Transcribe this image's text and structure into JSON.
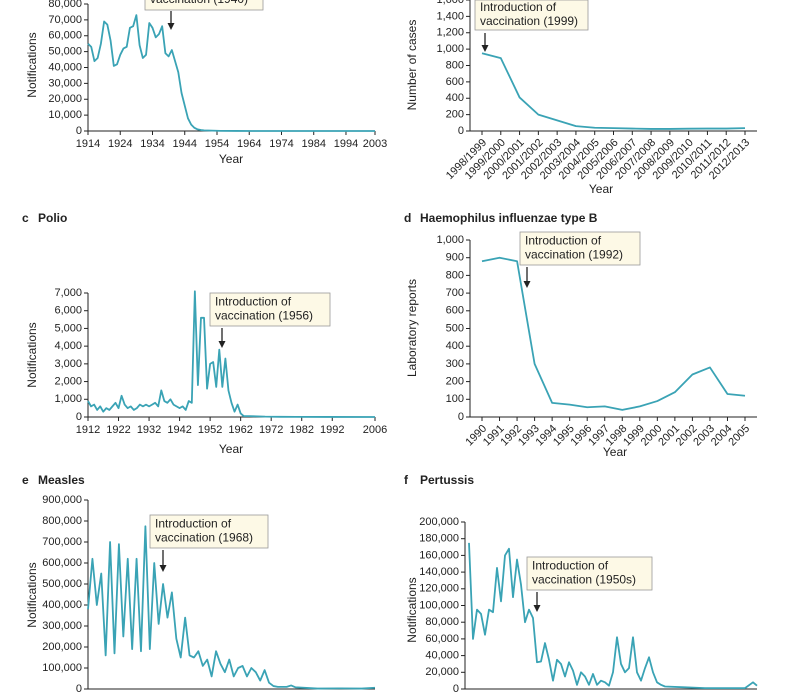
{
  "chart_data": [
    {
      "type": "line",
      "color": "#3aa3b5",
      "y_label": "Notifications",
      "x_label": "Year",
      "annotation": [
        "vaccination (1940)"
      ],
      "x": [
        1914,
        1915,
        1916,
        1917,
        1918,
        1919,
        1920,
        1921,
        1922,
        1923,
        1924,
        1925,
        1926,
        1927,
        1928,
        1929,
        1930,
        1931,
        1932,
        1933,
        1934,
        1935,
        1936,
        1937,
        1938,
        1939,
        1940,
        1941,
        1942,
        1943,
        1944,
        1945,
        1946,
        1947,
        1948,
        1949,
        1950,
        1955,
        1960,
        1965,
        1970,
        1975,
        1980,
        1985,
        1990,
        1995,
        2000,
        2003
      ],
      "values": [
        55000,
        53000,
        44000,
        46000,
        55000,
        69000,
        67000,
        57000,
        41000,
        42000,
        48000,
        52000,
        53000,
        65000,
        66000,
        73000,
        54000,
        46000,
        48000,
        68000,
        65000,
        59000,
        61000,
        66000,
        49000,
        47000,
        51000,
        44000,
        37000,
        24000,
        16000,
        8000,
        4000,
        2000,
        1000,
        600,
        400,
        100,
        50,
        20,
        10,
        5,
        5,
        5,
        5,
        10,
        10,
        10
      ],
      "xlim": [
        1914,
        2003
      ],
      "xticks": [
        1914,
        1924,
        1934,
        1944,
        1954,
        1964,
        1974,
        1984,
        1994,
        2003
      ],
      "ylim": [
        0,
        80000
      ],
      "yticks": [
        0,
        {
          "value": 10000,
          "label": "10,000"
        },
        {
          "value": 20000,
          "label": "20,000"
        },
        {
          "value": 30000,
          "label": "30,000"
        },
        {
          "value": 40000,
          "label": "40,000"
        },
        {
          "value": 50000,
          "label": "50,000"
        },
        {
          "value": 60000,
          "label": "60,000"
        },
        {
          "value": 70000,
          "label": "70,000"
        },
        {
          "value": 80000,
          "label": "80,000"
        }
      ]
    },
    {
      "type": "line",
      "color": "#3aa3b5",
      "y_label": "Number of cases",
      "x_label": "Year",
      "annotation": [
        "Introduction of",
        "vaccination (1999)"
      ],
      "categories": [
        "1998/1999",
        "1999/2000",
        "2000/2001",
        "2001/2002",
        "2002/2003",
        "2003/2004",
        "2004/2005",
        "2005/2006",
        "2006/2007",
        "2007/2008",
        "2008/2009",
        "2009/2010",
        "2010/2011",
        "2011/2012",
        "2012/2013"
      ],
      "values": [
        950,
        890,
        410,
        200,
        130,
        60,
        40,
        35,
        30,
        25,
        25,
        28,
        30,
        30,
        35
      ],
      "ylim": [
        0,
        1600
      ],
      "yticks": [
        0,
        200,
        400,
        600,
        800,
        {
          "value": 1000,
          "label": "1,000"
        },
        {
          "value": 1200,
          "label": "1,200"
        },
        {
          "value": 1400,
          "label": "1,400"
        },
        {
          "value": 1600,
          "label": "1,600"
        }
      ]
    },
    {
      "type": "line",
      "color": "#3aa3b5",
      "label": "c",
      "title": "Polio",
      "y_label": "Notifications",
      "x_label": "Year",
      "annotation": [
        "Introduction of",
        "vaccination (1956)"
      ],
      "x": [
        1912,
        1913,
        1914,
        1915,
        1916,
        1917,
        1918,
        1919,
        1920,
        1921,
        1922,
        1923,
        1924,
        1925,
        1926,
        1927,
        1928,
        1929,
        1930,
        1931,
        1932,
        1933,
        1934,
        1935,
        1936,
        1937,
        1938,
        1939,
        1940,
        1941,
        1942,
        1943,
        1944,
        1945,
        1946,
        1947,
        1948,
        1949,
        1950,
        1951,
        1952,
        1953,
        1954,
        1955,
        1956,
        1957,
        1958,
        1959,
        1960,
        1961,
        1962,
        1963,
        1965,
        1970,
        1975,
        1980,
        1990,
        2006
      ],
      "values": [
        900,
        600,
        700,
        400,
        600,
        300,
        500,
        400,
        600,
        800,
        500,
        1200,
        700,
        500,
        600,
        400,
        500,
        700,
        600,
        700,
        600,
        700,
        800,
        600,
        1500,
        900,
        800,
        1000,
        700,
        600,
        500,
        600,
        400,
        900,
        800,
        7100,
        1800,
        5600,
        5600,
        1600,
        3000,
        3100,
        1700,
        3800,
        1700,
        3300,
        1500,
        800,
        300,
        700,
        200,
        50,
        50,
        20,
        10,
        5,
        2,
        0
      ],
      "xlim": [
        1912,
        2006
      ],
      "xticks": [
        1912,
        1922,
        1932,
        1942,
        1952,
        1962,
        1972,
        1982,
        1992,
        2006
      ],
      "ylim": [
        0,
        7000
      ],
      "yticks": [
        0,
        {
          "value": 1000,
          "label": "1,000"
        },
        {
          "value": 2000,
          "label": "2,000"
        },
        {
          "value": 3000,
          "label": "3,000"
        },
        {
          "value": 4000,
          "label": "4,000"
        },
        {
          "value": 5000,
          "label": "5,000"
        },
        {
          "value": 6000,
          "label": "6,000"
        },
        {
          "value": 7000,
          "label": "7,000"
        }
      ]
    },
    {
      "type": "line",
      "color": "#3aa3b5",
      "label": "d",
      "title": "Haemophilus influenzae type B",
      "y_label": "Laboratory reports",
      "x_label": "Year",
      "annotation": [
        "Introduction of",
        "vaccination (1992)"
      ],
      "categories": [
        "1990",
        "1991",
        "1992",
        "1993",
        "1994",
        "1995",
        "1996",
        "1997",
        "1998",
        "1999",
        "2000",
        "2001",
        "2002",
        "2003",
        "2004",
        "2005"
      ],
      "values": [
        880,
        900,
        880,
        300,
        80,
        70,
        55,
        60,
        40,
        60,
        90,
        140,
        240,
        280,
        130,
        120
      ],
      "ylim": [
        0,
        1000
      ],
      "yticks": [
        0,
        100,
        200,
        300,
        400,
        500,
        600,
        700,
        800,
        900,
        {
          "value": 1000,
          "label": "1,000"
        }
      ]
    },
    {
      "type": "line",
      "color": "#3aa3b5",
      "label": "e",
      "title": "Measles",
      "y_label": "Notifications",
      "annotation": [
        "Introduction of",
        "vaccination (1968)"
      ],
      "x": [
        1948,
        1949,
        1950,
        1951,
        1952,
        1953,
        1954,
        1955,
        1956,
        1957,
        1958,
        1959,
        1960,
        1961,
        1962,
        1963,
        1964,
        1965,
        1966,
        1967,
        1968,
        1969,
        1970,
        1971,
        1972,
        1973,
        1974,
        1975,
        1976,
        1977,
        1978,
        1979,
        1980,
        1981,
        1982,
        1983,
        1984,
        1985,
        1986,
        1987,
        1988,
        1989,
        1990,
        1991,
        1992,
        1993,
        1994,
        1995,
        2000,
        2005,
        2010,
        2013
      ],
      "values": [
        380000,
        620000,
        400000,
        550000,
        160000,
        700000,
        170000,
        690000,
        250000,
        620000,
        190000,
        620000,
        180000,
        775000,
        190000,
        600000,
        310000,
        500000,
        340000,
        460000,
        240000,
        150000,
        340000,
        160000,
        150000,
        180000,
        110000,
        140000,
        60000,
        180000,
        120000,
        80000,
        140000,
        60000,
        100000,
        110000,
        60000,
        100000,
        80000,
        40000,
        90000,
        30000,
        14000,
        10000,
        10000,
        10000,
        17000,
        8000,
        2000,
        3000,
        2000,
        6000
      ],
      "xlim": [
        1948,
        2013
      ],
      "ylim": [
        0,
        900000
      ],
      "yticks": [
        0,
        {
          "value": 100000,
          "label": "100,000"
        },
        {
          "value": 200000,
          "label": "200,000"
        },
        {
          "value": 300000,
          "label": "300,000"
        },
        {
          "value": 400000,
          "label": "400,000"
        },
        {
          "value": 500000,
          "label": "500,000"
        },
        {
          "value": 600000,
          "label": "600,000"
        },
        {
          "value": 700000,
          "label": "700,000"
        },
        {
          "value": 800000,
          "label": "800,000"
        },
        {
          "value": 900000,
          "label": "900,000"
        }
      ]
    },
    {
      "type": "line",
      "color": "#3aa3b5",
      "label": "f",
      "title": "Pertussis",
      "y_label": "Notifications",
      "annotation": [
        "Introduction of",
        "vaccination (1950s)"
      ],
      "x": [
        1941,
        1942,
        1943,
        1944,
        1945,
        1946,
        1947,
        1948,
        1949,
        1950,
        1951,
        1952,
        1953,
        1954,
        1955,
        1956,
        1957,
        1958,
        1959,
        1960,
        1961,
        1962,
        1963,
        1964,
        1965,
        1966,
        1967,
        1968,
        1969,
        1970,
        1971,
        1972,
        1973,
        1974,
        1975,
        1976,
        1977,
        1978,
        1979,
        1980,
        1981,
        1982,
        1983,
        1984,
        1985,
        1986,
        1987,
        1988,
        1989,
        1990,
        1995,
        2000,
        2005,
        2010,
        2012,
        2013
      ],
      "values": [
        175000,
        60000,
        95000,
        90000,
        65000,
        95000,
        92000,
        145000,
        105000,
        160000,
        168000,
        110000,
        155000,
        125000,
        80000,
        95000,
        85000,
        32000,
        33000,
        55000,
        35000,
        10000,
        35000,
        30000,
        15000,
        32000,
        22000,
        5000,
        20000,
        15000,
        5000,
        18000,
        5000,
        10000,
        8000,
        4000,
        20000,
        62000,
        30000,
        20000,
        25000,
        62000,
        20000,
        10000,
        25000,
        38000,
        20000,
        8000,
        5000,
        3000,
        2000,
        1000,
        1000,
        1000,
        8000,
        4000
      ],
      "xlim": [
        1940,
        2013
      ],
      "ylim": [
        0,
        200000
      ],
      "yticks": [
        0,
        {
          "value": 20000,
          "label": "20,000"
        },
        {
          "value": 40000,
          "label": "40,000"
        },
        {
          "value": 60000,
          "label": "60,000"
        },
        {
          "value": 80000,
          "label": "80,000"
        },
        {
          "value": 100000,
          "label": "100,000"
        },
        {
          "value": 120000,
          "label": "120,000"
        },
        {
          "value": 140000,
          "label": "140,000"
        },
        {
          "value": 160000,
          "label": "160,000"
        },
        {
          "value": 180000,
          "label": "180,000"
        },
        {
          "value": 200000,
          "label": "200,000"
        }
      ]
    }
  ]
}
